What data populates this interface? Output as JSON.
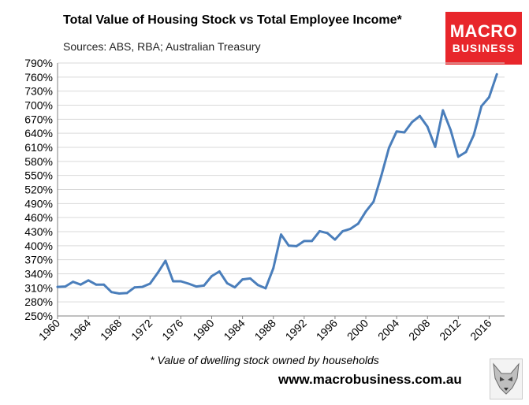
{
  "header": {
    "title": "Total Value of Housing Stock vs Total Employee Income*",
    "subtitle": "Sources: ABS, RBA; Australian Treasury"
  },
  "logo": {
    "line1": "MACRO",
    "line2": "BUSINESS",
    "color": "#e8262b"
  },
  "footer": {
    "footnote": "* Value of dwelling stock owned by households",
    "website": "www.macrobusiness.com.au"
  },
  "colors": {
    "line": "#4a7ebb",
    "grid": "#d9d9d9",
    "axis": "#808080"
  },
  "chart_data": {
    "type": "line",
    "title": "Total Value of Housing Stock vs Total Employee Income*",
    "subtitle": "Sources: ABS, RBA; Australian Treasury",
    "xlabel": "",
    "ylabel": "",
    "ylim": [
      250,
      790
    ],
    "y_ticks": [
      250,
      280,
      310,
      340,
      370,
      400,
      430,
      460,
      490,
      520,
      550,
      580,
      610,
      640,
      670,
      700,
      730,
      760,
      790
    ],
    "y_tick_labels": [
      "250%",
      "280%",
      "310%",
      "340%",
      "370%",
      "400%",
      "430%",
      "460%",
      "490%",
      "520%",
      "550%",
      "580%",
      "610%",
      "640%",
      "670%",
      "700%",
      "730%",
      "760%",
      "790%"
    ],
    "x_ticks": [
      1960,
      1964,
      1968,
      1972,
      1976,
      1980,
      1984,
      1988,
      1992,
      1996,
      2000,
      2004,
      2008,
      2012,
      2016
    ],
    "x_tick_labels": [
      "1960",
      "1964",
      "1968",
      "1972",
      "1976",
      "1980",
      "1984",
      "1988",
      "1992",
      "1996",
      "2000",
      "2004",
      "2008",
      "2012",
      "2016"
    ],
    "xlim": [
      1960,
      2018
    ],
    "grid": true,
    "legend": "none",
    "series": [
      {
        "x": [
          1960,
          1961,
          1962,
          1963,
          1964,
          1965,
          1966,
          1967,
          1968,
          1969,
          1970,
          1971,
          1972,
          1973,
          1974,
          1975,
          1976,
          1977,
          1978,
          1979,
          1980,
          1981,
          1982,
          1983,
          1984,
          1985,
          1986,
          1987,
          1988,
          1989,
          1990,
          1991,
          1992,
          1993,
          1994,
          1995,
          1996,
          1997,
          1998,
          1999,
          2000,
          2001,
          2002,
          2003,
          2004,
          2005,
          2006,
          2007,
          2008,
          2009,
          2010,
          2011,
          2012,
          2013,
          2014,
          2015,
          2016,
          2017
        ],
        "values": [
          312,
          313,
          323,
          317,
          326,
          317,
          317,
          301,
          298,
          299,
          311,
          312,
          319,
          342,
          368,
          324,
          324,
          319,
          313,
          315,
          335,
          345,
          320,
          311,
          328,
          330,
          316,
          309,
          352,
          424,
          400,
          399,
          410,
          410,
          431,
          427,
          413,
          431,
          436,
          447,
          473,
          494,
          549,
          609,
          644,
          642,
          664,
          677,
          654,
          611,
          689,
          647,
          590,
          600,
          636,
          698,
          717,
          766
        ]
      }
    ]
  }
}
